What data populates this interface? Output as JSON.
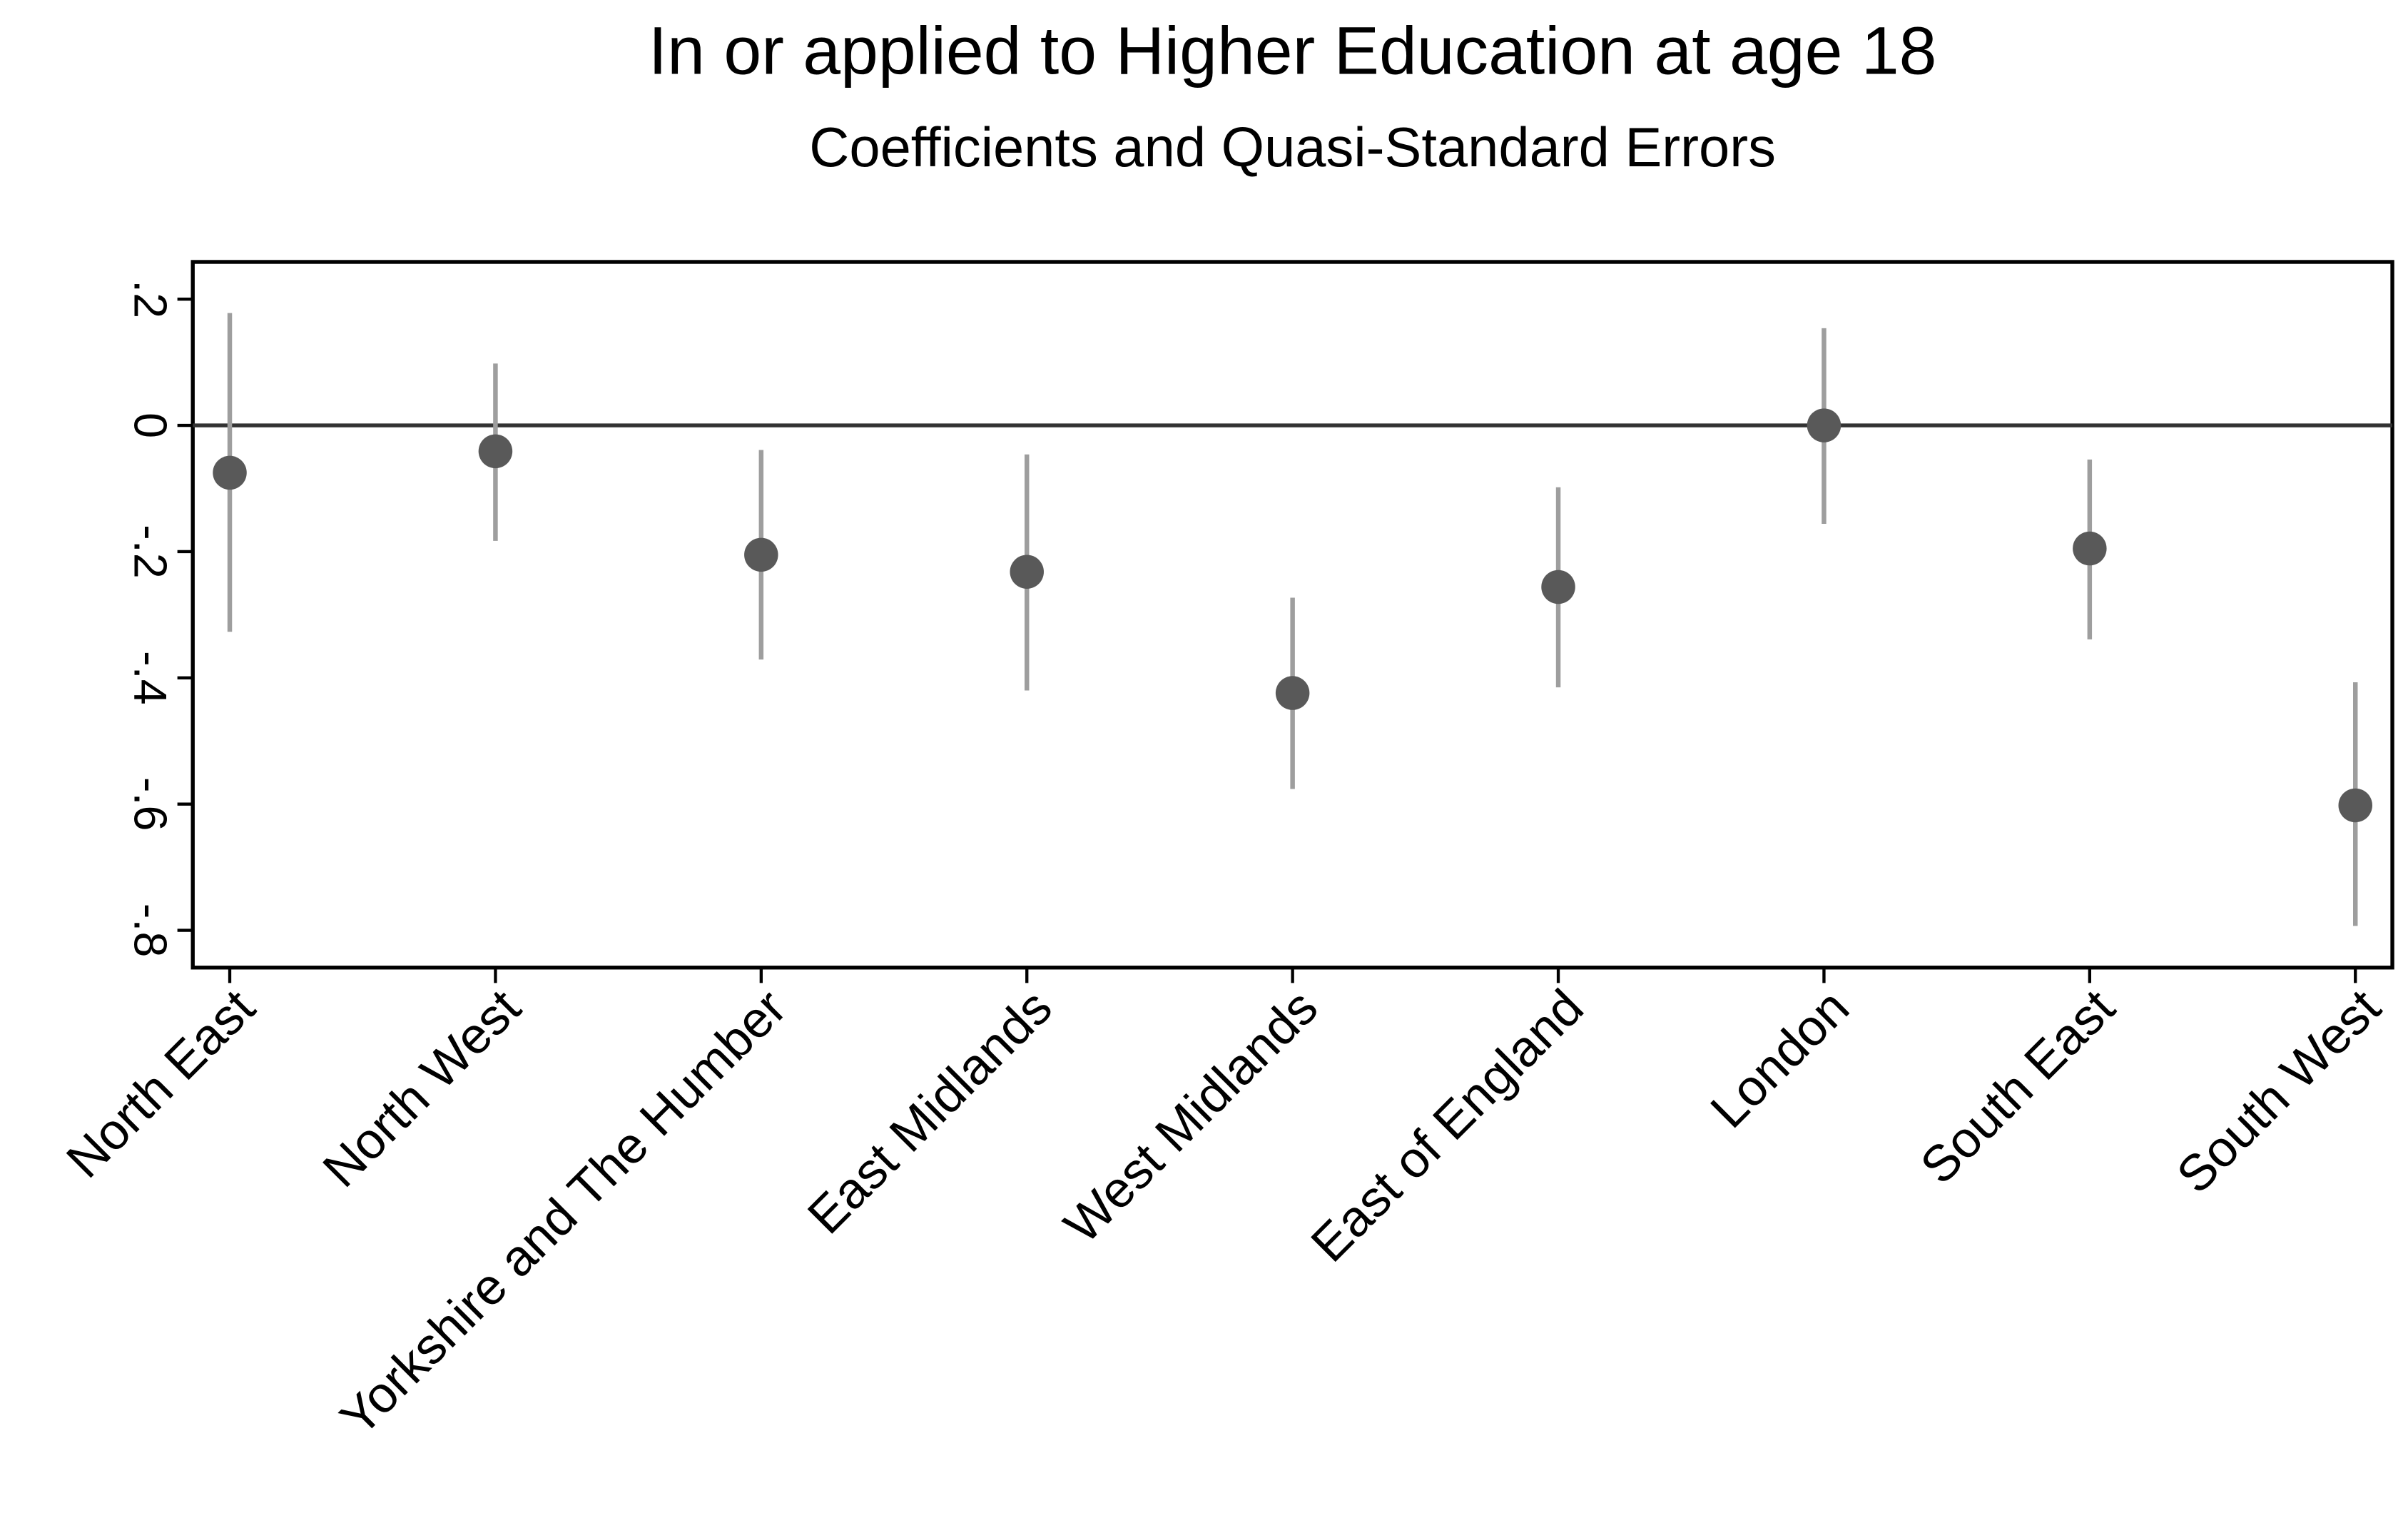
{
  "chart_data": {
    "type": "errorbar",
    "title": "In or applied to Higher Education at age 18",
    "subtitle": "Coefficients and Quasi-Standard Errors",
    "categories": [
      "North East",
      "North West",
      "Yorkshire and The Humber",
      "East Midlands",
      "West Midlands",
      "East of England",
      "London",
      "South East",
      "South West"
    ],
    "values": [
      -0.075,
      -0.041,
      -0.205,
      -0.232,
      -0.424,
      -0.256,
      0,
      -0.195,
      -0.602
    ],
    "lower": [
      -0.327,
      -0.183,
      -0.371,
      -0.42,
      -0.576,
      -0.415,
      -0.156,
      -0.339,
      -0.793
    ],
    "upper": [
      0.178,
      0.098,
      -0.039,
      -0.046,
      -0.273,
      -0.098,
      0.154,
      -0.054,
      -0.407
    ],
    "color": "#595959",
    "bar_color": "#9e9e9e",
    "ylim": [
      -0.859,
      0.259
    ],
    "yticks": [
      {
        "value": 0.2,
        "label": ".2"
      },
      0,
      {
        "value": -0.2,
        "label": "-.2"
      },
      {
        "value": -0.4,
        "label": "-.4"
      },
      {
        "value": -0.6,
        "label": "-.6"
      },
      {
        "value": -0.8,
        "label": "-.8"
      }
    ],
    "refline": 0,
    "grid": false
  }
}
